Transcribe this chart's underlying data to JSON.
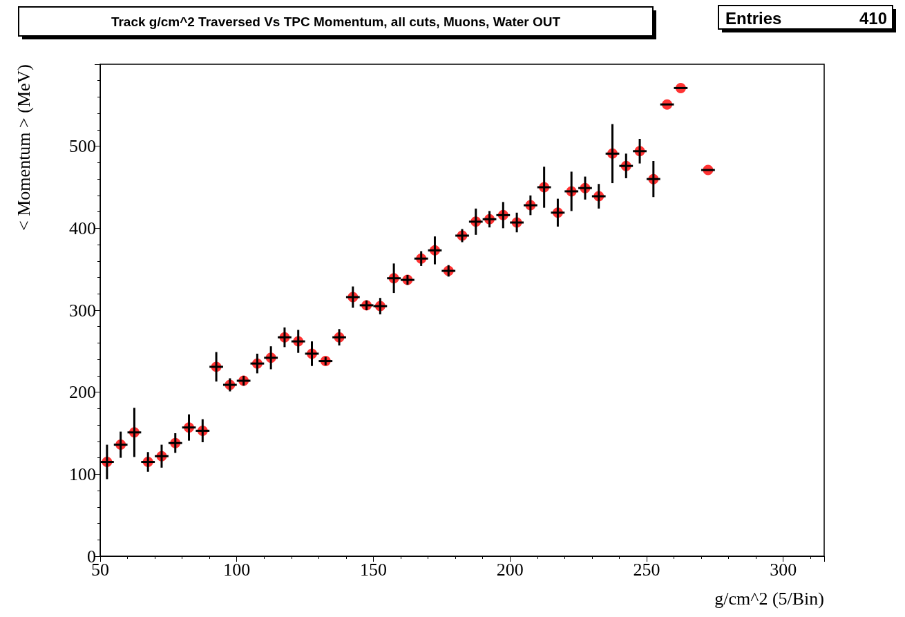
{
  "chart_data": {
    "type": "scatter",
    "title": "Track g/cm^2 Traversed Vs TPC Momentum, all cuts, Muons, Water OUT",
    "xlabel": "g/cm^2 (5/Bin)",
    "ylabel": "< Momentum > (MeV)",
    "annotations": [
      "Entries",
      "410"
    ],
    "x": [
      52.5,
      57.5,
      62.5,
      67.5,
      72.5,
      77.5,
      82.5,
      87.5,
      92.5,
      97.5,
      102.5,
      107.5,
      112.5,
      117.5,
      122.5,
      127.5,
      132.5,
      137.5,
      142.5,
      147.5,
      152.5,
      157.5,
      162.5,
      167.5,
      172.5,
      177.5,
      182.5,
      187.5,
      192.5,
      197.5,
      202.5,
      207.5,
      212.5,
      217.5,
      222.5,
      227.5,
      232.5,
      237.5,
      242.5,
      247.5,
      252.5,
      257.5,
      262.5,
      272.5
    ],
    "series": [
      {
        "color": "#ff0000",
        "values": [
          115,
          136,
          151,
          115,
          122,
          138,
          157,
          153,
          231,
          209,
          214,
          235,
          242,
          267,
          262,
          247,
          238,
          267,
          316,
          306,
          305,
          339,
          337,
          363,
          373,
          348,
          391,
          408,
          411,
          416,
          407,
          428,
          450,
          419,
          445,
          449,
          439,
          491,
          476,
          494,
          460,
          551,
          571,
          471
        ],
        "errors": [
          21,
          16,
          30,
          12,
          14,
          12,
          16,
          14,
          18,
          8,
          6,
          12,
          14,
          12,
          14,
          15,
          5,
          10,
          13,
          6,
          10,
          18,
          6,
          9,
          17,
          7,
          8,
          16,
          10,
          16,
          12,
          12,
          25,
          17,
          24,
          14,
          15,
          36,
          15,
          15,
          22,
          null,
          null,
          null
        ],
        "xerrors": [
          2.5,
          2.5,
          2.5,
          2.5,
          2.5,
          2.5,
          2.5,
          2.5,
          2.5,
          2.5,
          2.5,
          2.5,
          2.5,
          2.5,
          2.5,
          2.5,
          2.5,
          2.5,
          2.5,
          2.5,
          2.5,
          2.5,
          2.5,
          2.5,
          2.5,
          2.5,
          2.5,
          2.5,
          2.5,
          2.5,
          2.5,
          2.5,
          2.5,
          2.5,
          2.5,
          2.5,
          2.5,
          2.5,
          2.5,
          2.5,
          2.5,
          2.5,
          2.5,
          2.5
        ]
      }
    ],
    "xlim": [
      50,
      315
    ],
    "xticks": [
      50,
      100,
      150,
      200,
      250,
      300
    ],
    "ylim": [
      0,
      600
    ],
    "yticks": [
      0,
      100,
      200,
      300,
      400,
      500
    ],
    "marker": "circle",
    "grid": false
  }
}
